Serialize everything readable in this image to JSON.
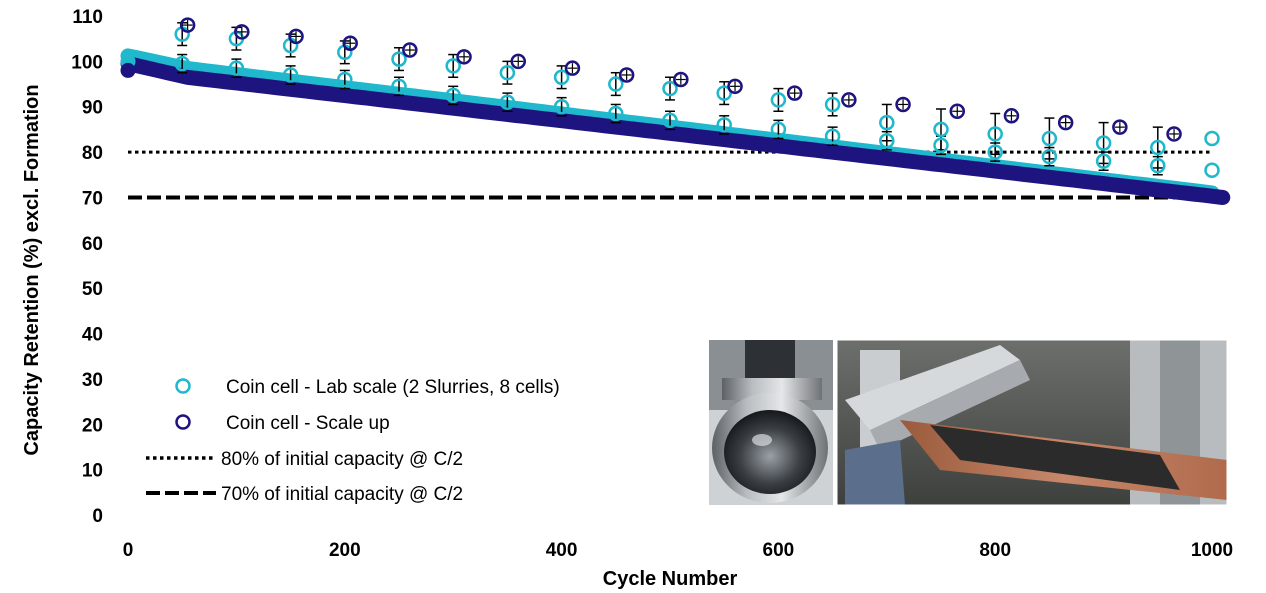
{
  "chart_data": {
    "type": "scatter",
    "xlabel": "Cycle Number",
    "ylabel": "Capacity Retention (%) excl. Formation",
    "xlim": [
      0,
      1000
    ],
    "ylim": [
      0,
      110
    ],
    "x_ticks": [
      0,
      200,
      400,
      600,
      800,
      1000
    ],
    "y_ticks": [
      0,
      10,
      20,
      30,
      40,
      50,
      60,
      70,
      80,
      90,
      100,
      110
    ],
    "grid": false,
    "legend_position": "bottom-left",
    "series": [
      {
        "name": "Coin cell -  Lab scale (2 Slurries, 8 cells)",
        "color": "#1fb8cc",
        "marker": "open-circle",
        "trend_start": [
          0,
          100
        ],
        "trend_end": [
          1000,
          71
        ],
        "markers": [
          {
            "x": 50,
            "y": 106,
            "err": 2.5
          },
          {
            "x": 100,
            "y": 105,
            "err": 2.5
          },
          {
            "x": 150,
            "y": 103.5,
            "err": 2.5
          },
          {
            "x": 200,
            "y": 102,
            "err": 2.5
          },
          {
            "x": 250,
            "y": 100.5,
            "err": 2.5
          },
          {
            "x": 300,
            "y": 99,
            "err": 2.5
          },
          {
            "x": 350,
            "y": 97.5,
            "err": 2.5
          },
          {
            "x": 400,
            "y": 96.5,
            "err": 2.5
          },
          {
            "x": 450,
            "y": 95,
            "err": 2.5
          },
          {
            "x": 500,
            "y": 94,
            "err": 2.5
          },
          {
            "x": 550,
            "y": 93,
            "err": 2.5
          },
          {
            "x": 600,
            "y": 91.5,
            "err": 2.5
          },
          {
            "x": 650,
            "y": 90.5,
            "err": 2.5
          },
          {
            "x": 700,
            "y": 86.5,
            "err": 4.0
          },
          {
            "x": 750,
            "y": 85,
            "err": 4.5
          },
          {
            "x": 800,
            "y": 84,
            "err": 4.5
          },
          {
            "x": 850,
            "y": 83,
            "err": 4.5
          },
          {
            "x": 900,
            "y": 82,
            "err": 4.5
          },
          {
            "x": 950,
            "y": 81,
            "err": 4.5
          },
          {
            "x": 1000,
            "y": 83,
            "err": 0
          },
          {
            "x": 50,
            "y": 99.5,
            "err": 2
          },
          {
            "x": 100,
            "y": 98.5,
            "err": 2
          },
          {
            "x": 150,
            "y": 97,
            "err": 2
          },
          {
            "x": 200,
            "y": 96,
            "err": 2
          },
          {
            "x": 250,
            "y": 94.5,
            "err": 2
          },
          {
            "x": 300,
            "y": 92.5,
            "err": 2
          },
          {
            "x": 350,
            "y": 91,
            "err": 2
          },
          {
            "x": 400,
            "y": 90,
            "err": 2
          },
          {
            "x": 450,
            "y": 88.5,
            "err": 2
          },
          {
            "x": 500,
            "y": 87,
            "err": 2
          },
          {
            "x": 550,
            "y": 86,
            "err": 2
          },
          {
            "x": 600,
            "y": 85,
            "err": 2
          },
          {
            "x": 650,
            "y": 83.5,
            "err": 2
          },
          {
            "x": 700,
            "y": 82.5,
            "err": 2
          },
          {
            "x": 750,
            "y": 81.5,
            "err": 2
          },
          {
            "x": 800,
            "y": 80,
            "err": 2
          },
          {
            "x": 850,
            "y": 79,
            "err": 2
          },
          {
            "x": 900,
            "y": 78,
            "err": 2
          },
          {
            "x": 950,
            "y": 77,
            "err": 2
          },
          {
            "x": 1000,
            "y": 76,
            "err": 0
          }
        ]
      },
      {
        "name": "Coin cell - Scale up",
        "color": "#1e1480",
        "marker": "open-circle",
        "trend_start": [
          0,
          98
        ],
        "trend_end": [
          1010,
          70
        ],
        "markers": [
          {
            "x": 55,
            "y": 108
          },
          {
            "x": 105,
            "y": 106.5
          },
          {
            "x": 155,
            "y": 105.5
          },
          {
            "x": 205,
            "y": 104
          },
          {
            "x": 260,
            "y": 102.5
          },
          {
            "x": 310,
            "y": 101
          },
          {
            "x": 360,
            "y": 100
          },
          {
            "x": 410,
            "y": 98.5
          },
          {
            "x": 460,
            "y": 97
          },
          {
            "x": 510,
            "y": 96
          },
          {
            "x": 560,
            "y": 94.5
          },
          {
            "x": 615,
            "y": 93
          },
          {
            "x": 665,
            "y": 91.5
          },
          {
            "x": 715,
            "y": 90.5
          },
          {
            "x": 765,
            "y": 89
          },
          {
            "x": 815,
            "y": 88
          },
          {
            "x": 865,
            "y": 86.5
          },
          {
            "x": 915,
            "y": 85.5
          },
          {
            "x": 965,
            "y": 84
          }
        ]
      }
    ],
    "reference_lines": [
      {
        "name": "80% of initial capacity @ C/2",
        "y": 80,
        "style": "dotted",
        "x_range": [
          0,
          1000
        ]
      },
      {
        "name": "70% of initial capacity @ C/2",
        "y": 70,
        "style": "dashed",
        "x_range": [
          0,
          1000
        ]
      }
    ]
  }
}
